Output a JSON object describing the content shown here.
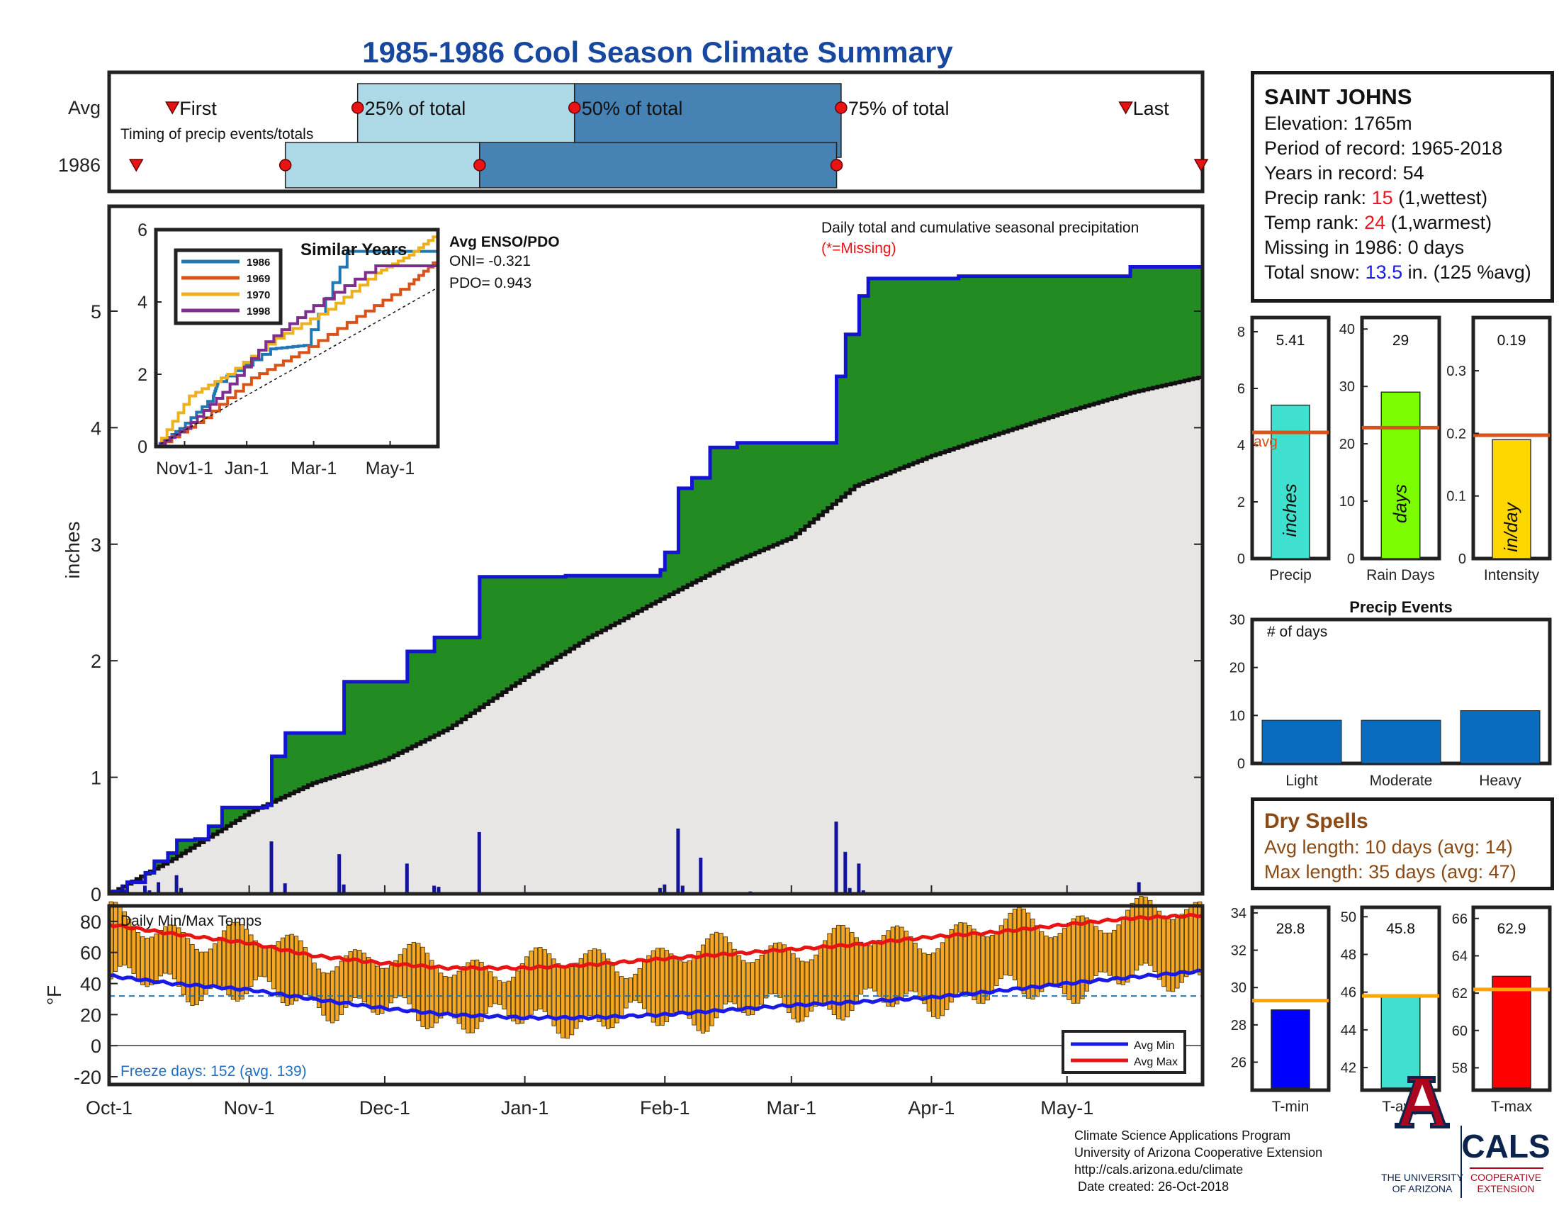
{
  "title": "1985-1986 Cool Season Climate Summary",
  "timing": {
    "caption": "Timing of precip events/totals",
    "row_avg": "Avg",
    "row_year": "1986",
    "first": "First",
    "q25": "25% of total",
    "q50": "50% of total",
    "q75": "75% of total",
    "last": "Last"
  },
  "station": {
    "name": "SAINT JOHNS",
    "elevation_label": "Elevation: ",
    "elevation": "1765m",
    "period_label": "Period of record: ",
    "period": "1965-2018",
    "years_label": "Years in record: ",
    "years": "54",
    "precip_rank_label": "Precip rank: ",
    "precip_rank": "15",
    "precip_rank_note": " (1,wettest)",
    "temp_rank_label": "Temp rank: ",
    "temp_rank": "24",
    "temp_rank_note": " (1,warmest)",
    "missing_label": "Missing in 1986: ",
    "missing": "0 days",
    "snow_label": "Total snow: ",
    "snow": "13.5",
    "snow_note": " in. (125 %avg)"
  },
  "dry_spells": {
    "title": "Dry Spells",
    "avg_length": "Avg length: 10 days (avg: 14)",
    "max_length": "Max length: 35 days (avg: 47)"
  },
  "main_plot": {
    "ylabel": "inches",
    "annotation": "Daily total and cumulative seasonal precipitation",
    "missing_note": "(*=Missing)",
    "enso_title": "Avg ENSO/PDO",
    "oni": "ONI= -0.321",
    "pdo": "PDO= 0.943"
  },
  "temp_plot": {
    "title": "Daily Min/Max Temps",
    "ylabel": "°F",
    "freeze_days": "Freeze days: 152 (avg. 139)",
    "legend_min": "Avg Min",
    "legend_max": "Avg Max"
  },
  "footer": {
    "line1": "Climate Science Applications Program",
    "line2": "University of Arizona Cooperative Extension",
    "line3": "http://cals.arizona.edu/climate",
    "line4": " Date created: 26-Oct-2018",
    "ua_line1": "THE UNIVERSITY",
    "ua_line2": "OF ARIZONA",
    "cals": "CALS",
    "cals_sub1": "COOPERATIVE",
    "cals_sub2": "EXTENSION"
  },
  "colors": {
    "observed_line": "#1414d2",
    "above_avg_fill": "#228b22",
    "avg_fill": "#e8e6e4",
    "avg_line": "#111111",
    "daily_bars": "#14149a",
    "temp_bars": "#f5a623",
    "avg_min": "#1a1ae6",
    "avg_max": "#e81414",
    "timing_light": "#add8e6",
    "timing_dark": "#4682b4",
    "ua_blue": "#0c234b",
    "ua_red": "#ab0520"
  },
  "chart_data": [
    {
      "id": "cumulative_precip",
      "type": "area",
      "ylabel": "inches",
      "ylim": [
        0,
        5.9
      ],
      "xlim": [
        "1985-10-01",
        "1986-05-31"
      ],
      "x_ticks": [
        "Oct-1",
        "Nov-1",
        "Dec-1",
        "Jan-1",
        "Feb-1",
        "Mar-1",
        "Apr-1",
        "May-1"
      ],
      "y_ticks": [
        0,
        1,
        2,
        3,
        4,
        5
      ],
      "observed_cumulative": [
        [
          "1985-10-01",
          0.02
        ],
        [
          "1985-10-05",
          0.1
        ],
        [
          "1985-10-09",
          0.18
        ],
        [
          "1985-10-11",
          0.28
        ],
        [
          "1985-10-14",
          0.35
        ],
        [
          "1985-10-16",
          0.46
        ],
        [
          "1985-10-20",
          0.47
        ],
        [
          "1985-10-23",
          0.58
        ],
        [
          "1985-10-26",
          0.74
        ],
        [
          "1985-11-05",
          0.76
        ],
        [
          "1985-11-06",
          1.18
        ],
        [
          "1985-11-09",
          1.38
        ],
        [
          "1985-11-22",
          1.82
        ],
        [
          "1985-12-06",
          2.08
        ],
        [
          "1985-12-12",
          2.2
        ],
        [
          "1985-12-22",
          2.72
        ],
        [
          "1986-01-10",
          2.73
        ],
        [
          "1986-01-31",
          2.78
        ],
        [
          "1986-02-01",
          2.93
        ],
        [
          "1986-02-04",
          3.48
        ],
        [
          "1986-02-07",
          3.57
        ],
        [
          "1986-02-11",
          3.83
        ],
        [
          "1986-02-17",
          3.87
        ],
        [
          "1986-03-11",
          4.44
        ],
        [
          "1986-03-13",
          4.8
        ],
        [
          "1986-03-16",
          5.13
        ],
        [
          "1986-03-18",
          5.28
        ],
        [
          "1986-04-07",
          5.3
        ],
        [
          "1986-05-15",
          5.38
        ],
        [
          "1986-05-31",
          5.41
        ]
      ],
      "average_cumulative": [
        [
          "1985-10-01",
          0.0
        ],
        [
          "1985-10-15",
          0.3
        ],
        [
          "1985-11-01",
          0.7
        ],
        [
          "1985-11-15",
          0.95
        ],
        [
          "1985-12-01",
          1.15
        ],
        [
          "1985-12-15",
          1.42
        ],
        [
          "1986-01-01",
          1.86
        ],
        [
          "1986-01-15",
          2.2
        ],
        [
          "1986-02-01",
          2.55
        ],
        [
          "1986-02-15",
          2.83
        ],
        [
          "1986-03-01",
          3.06
        ],
        [
          "1986-03-15",
          3.5
        ],
        [
          "1986-04-01",
          3.76
        ],
        [
          "1986-04-15",
          3.94
        ],
        [
          "1986-05-01",
          4.14
        ],
        [
          "1986-05-15",
          4.3
        ],
        [
          "1986-05-31",
          4.44
        ]
      ],
      "daily_precip": [
        [
          "1985-10-04",
          0.08
        ],
        [
          "1985-10-09",
          0.07
        ],
        [
          "1985-10-10",
          0.03
        ],
        [
          "1985-10-12",
          0.1
        ],
        [
          "1985-10-16",
          0.16
        ],
        [
          "1985-10-17",
          0.05
        ],
        [
          "1985-11-06",
          0.45
        ],
        [
          "1985-11-09",
          0.09
        ],
        [
          "1985-11-21",
          0.34
        ],
        [
          "1985-11-22",
          0.08
        ],
        [
          "1985-12-06",
          0.26
        ],
        [
          "1985-12-12",
          0.07
        ],
        [
          "1985-12-13",
          0.06
        ],
        [
          "1985-12-22",
          0.53
        ],
        [
          "1986-01-31",
          0.05
        ],
        [
          "1986-02-01",
          0.08
        ],
        [
          "1986-02-04",
          0.56
        ],
        [
          "1986-02-05",
          0.07
        ],
        [
          "1986-02-09",
          0.31
        ],
        [
          "1986-02-20",
          0.02
        ],
        [
          "1986-03-11",
          0.62
        ],
        [
          "1986-03-13",
          0.36
        ],
        [
          "1986-03-14",
          0.05
        ],
        [
          "1986-03-16",
          0.26
        ],
        [
          "1986-03-17",
          0.03
        ],
        [
          "1986-05-17",
          0.1
        ]
      ]
    },
    {
      "id": "similar_years",
      "type": "line",
      "title": "Similar Years",
      "ylim": [
        0,
        6
      ],
      "x_ticks": [
        "Nov1-1",
        "Jan-1",
        "Mar-1",
        "May-1"
      ],
      "y_ticks": [
        0,
        2,
        4,
        6
      ],
      "series": [
        {
          "name": "1986",
          "color": "#1f77b4",
          "x_months": [
            0,
            0.5,
            1.2,
            1.3,
            2.4,
            3.1,
            4.0,
            5.9
          ],
          "y": [
            0,
            0.5,
            1.4,
            1.8,
            2.7,
            2.8,
            5.4,
            5.4
          ]
        },
        {
          "name": "1969",
          "color": "#d95319",
          "x_months": [
            0,
            1.0,
            2.0,
            3.0,
            4.2,
            5.3,
            5.9
          ],
          "y": [
            0,
            0.8,
            1.9,
            2.6,
            3.6,
            4.5,
            5.2
          ]
        },
        {
          "name": "1970",
          "color": "#edb120",
          "x_months": [
            0,
            0.7,
            1.5,
            2.5,
            3.6,
            4.6,
            5.3,
            5.9
          ],
          "y": [
            0,
            1.4,
            2.0,
            3.0,
            3.8,
            4.8,
            5.3,
            5.9
          ]
        },
        {
          "name": "1998",
          "color": "#7e2f8e",
          "x_months": [
            0,
            0.6,
            1.4,
            2.3,
            3.3,
            4.6,
            5.5,
            5.9
          ],
          "y": [
            0,
            0.5,
            1.5,
            2.9,
            3.9,
            5.0,
            5.0,
            5.0
          ]
        },
        {
          "name": "average",
          "color": "#111111",
          "dash": true,
          "x_months": [
            0,
            5.9
          ],
          "y": [
            0,
            4.4
          ]
        }
      ]
    },
    {
      "id": "timing",
      "type": "bar",
      "rows": [
        {
          "name": "Avg",
          "first": "1985-10-15",
          "q25": "1985-11-25",
          "q50": "1986-01-12",
          "q75": "1986-03-12",
          "last": "1986-05-14"
        },
        {
          "name": "1986",
          "first": "1985-10-07",
          "q25": "1985-11-09",
          "q50": "1985-12-22",
          "q75": "1986-03-11",
          "last": "1986-05-31"
        }
      ]
    },
    {
      "id": "precip_total",
      "type": "bar",
      "categories": [
        "Precip"
      ],
      "values": [
        5.41
      ],
      "avg": 4.45,
      "bar_label": "inches",
      "avg_label": "avg",
      "ylim": [
        0,
        8.5
      ],
      "y_ticks": [
        0,
        2,
        4,
        6,
        8
      ]
    },
    {
      "id": "rain_days",
      "type": "bar",
      "categories": [
        "Rain Days"
      ],
      "values": [
        29
      ],
      "avg": 22.8,
      "bar_label": "days",
      "ylim": [
        0,
        42
      ],
      "y_ticks": [
        0,
        10,
        20,
        30,
        40
      ]
    },
    {
      "id": "intensity",
      "type": "bar",
      "categories": [
        "Intensity"
      ],
      "values": [
        0.19
      ],
      "avg": 0.197,
      "bar_label": "in/day",
      "ylim": [
        0,
        0.385
      ],
      "y_ticks": [
        0,
        0.1,
        0.2,
        0.3
      ]
    },
    {
      "id": "precip_events",
      "type": "bar",
      "title": "Precip Events",
      "annotation": "# of days",
      "categories": [
        "Light",
        "Moderate",
        "Heavy"
      ],
      "values": [
        9,
        9,
        11
      ],
      "ylim": [
        0,
        30
      ],
      "y_ticks": [
        0,
        10,
        20,
        30
      ]
    },
    {
      "id": "daily_temps",
      "type": "bar",
      "title": "Daily Min/Max Temps",
      "ylim": [
        -25,
        90
      ],
      "y_ticks": [
        -20,
        0,
        20,
        40,
        60,
        80
      ],
      "freeze_line": 32,
      "avg_min": [
        [
          "1985-10-01",
          45
        ],
        [
          "1985-10-15",
          40
        ],
        [
          "1985-11-01",
          36
        ],
        [
          "1985-11-15",
          30
        ],
        [
          "1985-12-01",
          24
        ],
        [
          "1985-12-15",
          20
        ],
        [
          "1986-01-01",
          18
        ],
        [
          "1986-01-15",
          18
        ],
        [
          "1986-02-01",
          20
        ],
        [
          "1986-02-15",
          23
        ],
        [
          "1986-03-01",
          26
        ],
        [
          "1986-03-15",
          28
        ],
        [
          "1986-04-01",
          31
        ],
        [
          "1986-04-15",
          35
        ],
        [
          "1986-05-01",
          40
        ],
        [
          "1986-05-15",
          44
        ],
        [
          "1986-05-31",
          48
        ]
      ],
      "avg_max": [
        [
          "1985-10-01",
          78
        ],
        [
          "1985-10-15",
          72
        ],
        [
          "1985-11-01",
          66
        ],
        [
          "1985-11-15",
          58
        ],
        [
          "1985-12-01",
          53
        ],
        [
          "1985-12-15",
          50
        ],
        [
          "1986-01-01",
          50
        ],
        [
          "1986-01-15",
          52
        ],
        [
          "1986-02-01",
          56
        ],
        [
          "1986-02-15",
          59
        ],
        [
          "1986-03-01",
          62
        ],
        [
          "1986-03-15",
          65
        ],
        [
          "1986-04-01",
          70
        ],
        [
          "1986-04-15",
          73
        ],
        [
          "1986-05-01",
          78
        ],
        [
          "1986-05-15",
          82
        ],
        [
          "1986-05-31",
          84
        ]
      ]
    },
    {
      "id": "temp_summary",
      "type": "bar",
      "panels": [
        {
          "name": "T-min",
          "value": 28.8,
          "avg": 29.3,
          "ylim": [
            24.5,
            34.3
          ],
          "y_ticks": [
            26,
            28,
            30,
            32,
            34
          ],
          "color": "#0000ff"
        },
        {
          "name": "T-avg",
          "value": 45.8,
          "avg": 45.8,
          "ylim": [
            40.8,
            50.5
          ],
          "y_ticks": [
            42,
            44,
            46,
            48,
            50
          ],
          "color": "#40e0d0"
        },
        {
          "name": "T-max",
          "value": 62.9,
          "avg": 62.2,
          "ylim": [
            56.8,
            66.6
          ],
          "y_ticks": [
            58,
            60,
            62,
            64,
            66
          ],
          "color": "#ff0000"
        }
      ]
    }
  ]
}
